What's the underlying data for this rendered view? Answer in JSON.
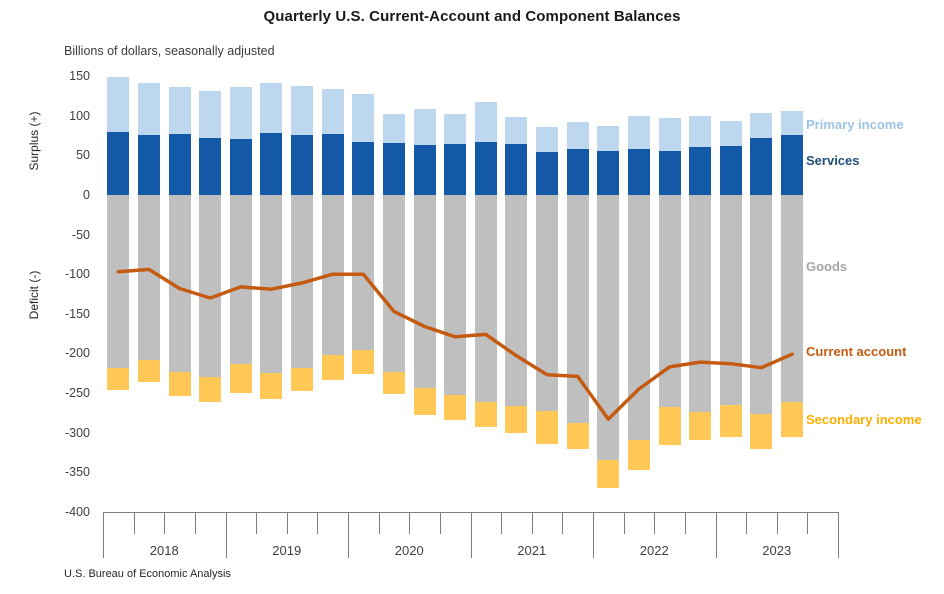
{
  "title": "Quarterly U.S. Current-Account and Component Balances",
  "subtitle": "Billions of dollars, seasonally adjusted",
  "source": "U.S. Bureau of Economic Analysis",
  "axis": {
    "surplus_label": "Surplus (+)",
    "deficit_label": "Deficit (-)",
    "y_ticks": [
      150,
      100,
      50,
      0,
      -50,
      -100,
      -150,
      -200,
      -250,
      -300,
      -350,
      -400
    ],
    "years": [
      "2018",
      "2019",
      "2020",
      "2021",
      "2022",
      "2023"
    ]
  },
  "colors": {
    "axis_text": "#404040",
    "axis_line": "#7f7f7f",
    "background": "#ffffff"
  },
  "chart_data": {
    "type": "bar",
    "stacked": true,
    "title": "Quarterly U.S. Current-Account and Component Balances",
    "ylabel": "Billions of dollars, seasonally adjusted",
    "ylim": [
      -400,
      150
    ],
    "grid": false,
    "legend_position": "right-of-plot",
    "categories": [
      "2018 Q1",
      "2018 Q2",
      "2018 Q3",
      "2018 Q4",
      "2019 Q1",
      "2019 Q2",
      "2019 Q3",
      "2019 Q4",
      "2020 Q1",
      "2020 Q2",
      "2020 Q3",
      "2020 Q4",
      "2021 Q1",
      "2021 Q2",
      "2021 Q3",
      "2021 Q4",
      "2022 Q1",
      "2022 Q2",
      "2022 Q3",
      "2022 Q4",
      "2023 Q1",
      "2023 Q2",
      "2023 Q3"
    ],
    "series": [
      {
        "name": "Services",
        "color": "#1359a7",
        "label_color": "#1f4e79",
        "values": [
          79,
          76,
          77,
          72,
          71,
          78,
          76,
          77,
          67,
          66,
          63,
          64,
          67,
          64,
          54,
          58,
          56,
          58,
          55,
          60,
          62,
          72,
          76
        ]
      },
      {
        "name": "Primary income",
        "color": "#bdd7ee",
        "label_color": "#9dc3e6",
        "values": [
          70,
          66,
          59,
          59,
          65,
          63,
          62,
          57,
          60,
          36,
          46,
          38,
          50,
          34,
          32,
          34,
          31,
          42,
          42,
          40,
          32,
          32,
          30
        ]
      },
      {
        "name": "Goods",
        "color": "#bfbfbf",
        "label_color": "#a6a6a6",
        "values": [
          -219,
          -208,
          -224,
          -230,
          -214,
          -225,
          -218,
          -202,
          -196,
          -224,
          -244,
          -252,
          -261,
          -266,
          -273,
          -288,
          -335,
          -309,
          -268,
          -274,
          -265,
          -276,
          -261
        ]
      },
      {
        "name": "Secondary income",
        "color": "#ffc857",
        "label_color": "#ffae00",
        "values": [
          -27,
          -28,
          -30,
          -31,
          -36,
          -32,
          -29,
          -32,
          -30,
          -27,
          -34,
          -32,
          -32,
          -35,
          -41,
          -33,
          -35,
          -38,
          -48,
          -35,
          -41,
          -45,
          -45
        ]
      }
    ],
    "line_series": {
      "name": "Current account",
      "color": "#c55a11",
      "label_color": "#c55a11",
      "values": [
        -97,
        -94,
        -118,
        -130,
        -116,
        -119,
        -111,
        -100,
        -100,
        -147,
        -166,
        -179,
        -176,
        -203,
        -227,
        -229,
        -283,
        -245,
        -217,
        -211,
        -213,
        -218,
        -201
      ]
    }
  }
}
